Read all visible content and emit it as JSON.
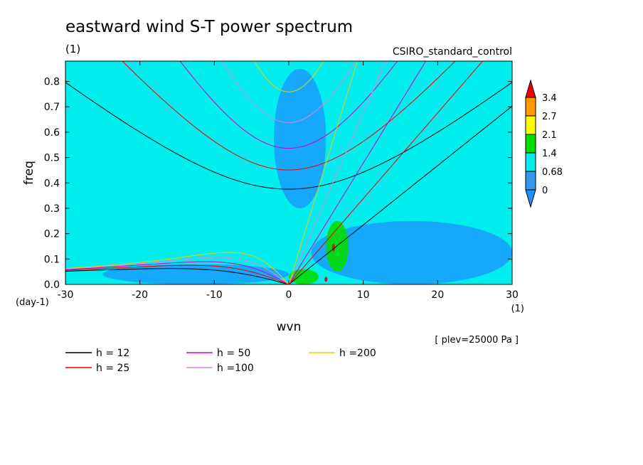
{
  "chart_data": {
    "type": "heatmap",
    "title": "eastward wind S-T power spectrum",
    "subtitle_left": "(1)",
    "subtitle_right": "CSIRO_standard_control",
    "xlabel": "wvn",
    "ylabel": "freq",
    "x_unit": "(1)",
    "y_unit": "(day-1)",
    "annotation": "[ plev=25000 Pa ]",
    "xlim": [
      -30,
      30
    ],
    "ylim": [
      0,
      0.88
    ],
    "x_ticks": [
      -30,
      -20,
      -10,
      0,
      10,
      20,
      30
    ],
    "x_tick_labels": [
      "-30",
      "-20",
      "-10",
      "0",
      "10",
      "20",
      "30"
    ],
    "y_ticks": [
      0,
      0.1,
      0.2,
      0.3,
      0.4,
      0.5,
      0.6,
      0.7,
      0.8
    ],
    "y_tick_labels": [
      "0.0",
      "0.1",
      "0.2",
      "0.3",
      "0.4",
      "0.5",
      "0.6",
      "0.7",
      "0.8"
    ],
    "colorbar": {
      "levels": [
        "0",
        "0.68",
        "1.4",
        "2.1",
        "2.7",
        "3.4"
      ],
      "colors": [
        "#1e90ff",
        "#3399ee",
        "#00eeee",
        "#00dd00",
        "#ffff00",
        "#ff9900",
        "#ee0000"
      ]
    },
    "background_color": "#00eeee",
    "dispersion_curves": [
      {
        "label": "h = 12",
        "h": 12,
        "color": "#000000"
      },
      {
        "label": "h = 25",
        "h": 25,
        "color": "#ee0000"
      },
      {
        "label": "h = 50",
        "h": 50,
        "color": "#cc00cc"
      },
      {
        "label": "h =100",
        "h": 100,
        "color": "#dd88dd"
      },
      {
        "label": "h =200",
        "h": 200,
        "color": "#eecc00"
      }
    ],
    "power_regions": [
      {
        "level": "low",
        "x": [
          -2,
          5
        ],
        "y": [
          0.3,
          0.85
        ]
      },
      {
        "level": "low",
        "x": [
          3,
          30
        ],
        "y": [
          0.0,
          0.25
        ]
      },
      {
        "level": "low",
        "x": [
          -25,
          0
        ],
        "y": [
          0.0,
          0.08
        ]
      },
      {
        "level": "high",
        "x": [
          5,
          8
        ],
        "y": [
          0.05,
          0.25
        ]
      },
      {
        "level": "high",
        "x": [
          0,
          4
        ],
        "y": [
          0.0,
          0.06
        ]
      },
      {
        "level": "max",
        "x": [
          5.8,
          6.2
        ],
        "y": [
          0.13,
          0.16
        ]
      },
      {
        "level": "max",
        "x": [
          4.8,
          5.2
        ],
        "y": [
          0.01,
          0.03
        ]
      }
    ]
  }
}
